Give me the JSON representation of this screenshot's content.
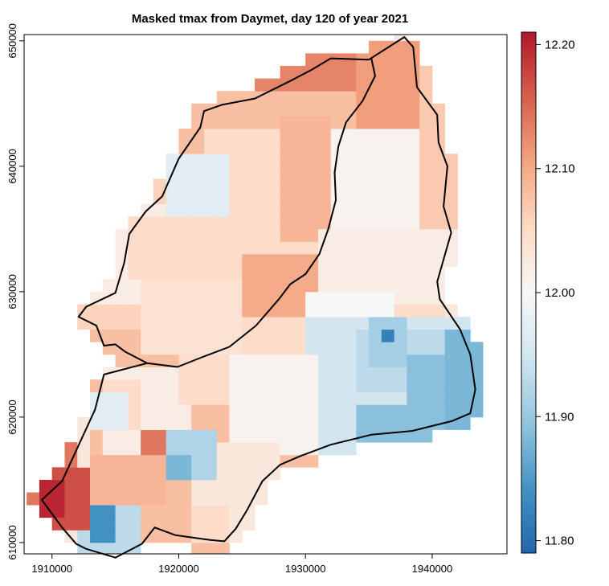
{
  "chart_data": {
    "type": "heatmap",
    "title": "Masked tmax from Daymet, day 120 of year 2021",
    "xlabel": "",
    "ylabel": "",
    "xlim": [
      1907800,
      1945900
    ],
    "ylim": [
      609100,
      650500
    ],
    "x_ticks": [
      1910000,
      1920000,
      1930000,
      1940000
    ],
    "x_tick_labels": [
      "1910000",
      "1920000",
      "1930000",
      "1940000"
    ],
    "y_ticks": [
      610000,
      620000,
      630000,
      640000,
      650000
    ],
    "y_tick_labels": [
      "610000",
      "620000",
      "630000",
      "640000",
      "650000"
    ],
    "grid": false,
    "legend": "colorbar-right",
    "colorbar": {
      "range": [
        11.79,
        12.21
      ],
      "ticks": [
        11.8,
        11.9,
        12.0,
        12.1,
        12.2
      ],
      "tick_labels": [
        "11.80",
        "11.90",
        "12.00",
        "12.10",
        "12.20"
      ],
      "palette": [
        "#2166ac",
        "#4393c3",
        "#92c5de",
        "#d1e5f0",
        "#f7f7f7",
        "#fddbc7",
        "#f4a582",
        "#d6604d",
        "#b2182b"
      ]
    },
    "cell_size": 1000,
    "boundary": [
      [
        1909200,
        613400
      ],
      [
        1910800,
        614900
      ],
      [
        1913400,
        620600
      ],
      [
        1914100,
        623400
      ],
      [
        1917500,
        624300
      ],
      [
        1915800,
        625200
      ],
      [
        1915000,
        625800
      ],
      [
        1914100,
        625700
      ],
      [
        1913500,
        627300
      ],
      [
        1912100,
        628000
      ],
      [
        1912700,
        628800
      ],
      [
        1915000,
        629900
      ],
      [
        1915700,
        632300
      ],
      [
        1916100,
        634600
      ],
      [
        1917400,
        636400
      ],
      [
        1918700,
        637600
      ],
      [
        1920000,
        640600
      ],
      [
        1921700,
        643100
      ],
      [
        1922000,
        644400
      ],
      [
        1923400,
        644900
      ],
      [
        1926000,
        645400
      ],
      [
        1928800,
        646800
      ],
      [
        1930500,
        647700
      ],
      [
        1932000,
        648600
      ],
      [
        1935000,
        648500
      ],
      [
        1937800,
        650300
      ],
      [
        1938500,
        649500
      ],
      [
        1938800,
        646300
      ],
      [
        1940400,
        644100
      ],
      [
        1940500,
        641900
      ],
      [
        1941200,
        640000
      ],
      [
        1940900,
        636800
      ],
      [
        1941500,
        634700
      ],
      [
        1940400,
        630800
      ],
      [
        1940600,
        629400
      ],
      [
        1942200,
        627000
      ],
      [
        1943000,
        625000
      ],
      [
        1943400,
        622200
      ],
      [
        1943000,
        620300
      ],
      [
        1941600,
        619700
      ],
      [
        1938400,
        618900
      ],
      [
        1935200,
        618600
      ],
      [
        1932000,
        617800
      ],
      [
        1929600,
        616900
      ],
      [
        1928000,
        616200
      ],
      [
        1926600,
        614900
      ],
      [
        1925400,
        612600
      ],
      [
        1924500,
        611100
      ],
      [
        1923600,
        610100
      ],
      [
        1922500,
        610200
      ],
      [
        1919700,
        610600
      ],
      [
        1918100,
        611200
      ],
      [
        1917100,
        609900
      ],
      [
        1915000,
        608800
      ],
      [
        1912700,
        609500
      ],
      [
        1911900,
        609900
      ],
      [
        1910800,
        611200
      ],
      [
        1909200,
        613400
      ]
    ],
    "divider": [
      [
        1917500,
        624300
      ],
      [
        1919900,
        624000
      ],
      [
        1921900,
        624800
      ],
      [
        1924000,
        625600
      ],
      [
        1926100,
        627300
      ],
      [
        1927900,
        629400
      ],
      [
        1928800,
        630600
      ],
      [
        1930000,
        631400
      ],
      [
        1931100,
        633000
      ],
      [
        1931800,
        635000
      ],
      [
        1932400,
        637300
      ],
      [
        1932300,
        639500
      ],
      [
        1932600,
        641600
      ],
      [
        1933200,
        643500
      ],
      [
        1934500,
        645200
      ],
      [
        1935500,
        647200
      ],
      [
        1935200,
        648600
      ]
    ],
    "grid_layers": [
      {
        "x": [
          1913000,
          1936000
        ],
        "y": [
          609000,
          650000
        ],
        "v": 12.08
      },
      {
        "x": [
          1912000,
          1921000
        ],
        "y": [
          627000,
          641000
        ],
        "v": 12.06
      },
      {
        "x": [
          1913000,
          1924000
        ],
        "y": [
          629000,
          637000
        ],
        "v": 12.02
      },
      {
        "x": [
          1914000,
          1921000
        ],
        "y": [
          616000,
          624000
        ],
        "v": 12.02
      },
      {
        "x": [
          1920000,
          1941000
        ],
        "y": [
          621000,
          639000
        ],
        "v": 12.05
      },
      {
        "x": [
          1936000,
          1946000
        ],
        "y": [
          630000,
          650000
        ],
        "v": 12.07
      },
      {
        "x": [
          1926000,
          1934000
        ],
        "y": [
          646000,
          650000
        ],
        "v": 12.13
      },
      {
        "x": [
          1934000,
          1939000
        ],
        "y": [
          643000,
          650000
        ],
        "v": 12.11
      },
      {
        "x": [
          1932000,
          1939000
        ],
        "y": [
          631000,
          643000
        ],
        "v": 12.01
      },
      {
        "x": [
          1928000,
          1932000
        ],
        "y": [
          634000,
          644000
        ],
        "v": 12.09
      },
      {
        "x": [
          1922000,
          1928000
        ],
        "y": [
          632000,
          643000
        ],
        "v": 12.05
      },
      {
        "x": [
          1919000,
          1924000
        ],
        "y": [
          636000,
          641000
        ],
        "v": 11.97
      },
      {
        "x": [
          1916000,
          1920000
        ],
        "y": [
          631000,
          636000
        ],
        "v": 12.05
      },
      {
        "x": [
          1917000,
          1925000
        ],
        "y": [
          625000,
          631000
        ],
        "v": 12.04
      },
      {
        "x": [
          1925000,
          1931000
        ],
        "y": [
          628000,
          633000
        ],
        "v": 12.1
      },
      {
        "x": [
          1931000,
          1942000
        ],
        "y": [
          629000,
          635000
        ],
        "v": 12.02
      },
      {
        "x": [
          1930000,
          1937000
        ],
        "y": [
          627000,
          630000
        ],
        "v": 12.0
      },
      {
        "x": [
          1930000,
          1944000
        ],
        "y": [
          617000,
          628000
        ],
        "v": 11.95
      },
      {
        "x": [
          1934000,
          1943000
        ],
        "y": [
          622000,
          627000
        ],
        "v": 11.93
      },
      {
        "x": [
          1938000,
          1946000
        ],
        "y": [
          617000,
          625000
        ],
        "v": 11.89
      },
      {
        "x": [
          1941000,
          1944000
        ],
        "y": [
          619000,
          627000
        ],
        "v": 11.88
      },
      {
        "x": [
          1934000,
          1941000
        ],
        "y": [
          616000,
          621000
        ],
        "v": 11.89
      },
      {
        "x": [
          1935000,
          1938000
        ],
        "y": [
          624000,
          628000
        ],
        "v": 11.91
      },
      {
        "x": [
          1936000,
          1937000
        ],
        "y": [
          626000,
          627000
        ],
        "v": 11.82
      },
      {
        "x": [
          1924000,
          1931000
        ],
        "y": [
          617000,
          625000
        ],
        "v": 12.01
      },
      {
        "x": [
          1921000,
          1928000
        ],
        "y": [
          610000,
          618000
        ],
        "v": 12.03
      },
      {
        "x": [
          1918000,
          1923000
        ],
        "y": [
          615000,
          619000
        ],
        "v": 11.92
      },
      {
        "x": [
          1919000,
          1921000
        ],
        "y": [
          615000,
          617000
        ],
        "v": 11.88
      },
      {
        "x": [
          1921000,
          1924000
        ],
        "y": [
          610000,
          613000
        ],
        "v": 12.05
      },
      {
        "x": [
          1912000,
          1917000
        ],
        "y": [
          608000,
          613000
        ],
        "v": 11.93
      },
      {
        "x": [
          1913000,
          1915000
        ],
        "y": [
          610000,
          613000
        ],
        "v": 11.84
      },
      {
        "x": [
          1908000,
          1912000
        ],
        "y": [
          611000,
          624000
        ],
        "v": 12.14
      },
      {
        "x": [
          1909000,
          1913000
        ],
        "y": [
          611000,
          616000
        ],
        "v": 12.17
      },
      {
        "x": [
          1909000,
          1911000
        ],
        "y": [
          612000,
          615000
        ],
        "v": 12.2
      },
      {
        "x": [
          1913000,
          1919000
        ],
        "y": [
          613000,
          617000
        ],
        "v": 12.09
      },
      {
        "x": [
          1914000,
          1917000
        ],
        "y": [
          619000,
          623000
        ],
        "v": 12.05
      },
      {
        "x": [
          1917000,
          1919000
        ],
        "y": [
          617000,
          619000
        ],
        "v": 12.14
      },
      {
        "x": [
          1913000,
          1916000
        ],
        "y": [
          619000,
          622000
        ],
        "v": 11.97
      }
    ]
  }
}
